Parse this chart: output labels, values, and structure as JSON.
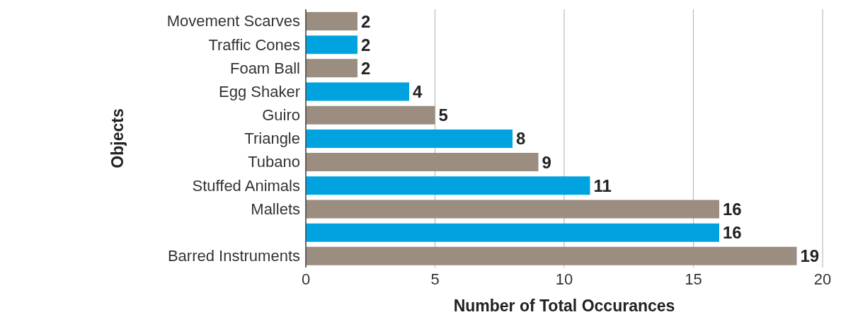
{
  "chart_data": {
    "type": "bar",
    "orientation": "horizontal",
    "xlabel": "Number of Total Occurances",
    "ylabel": "Objects",
    "categories": [
      "Movement Scarves",
      "Traffic Cones",
      "Foam Ball",
      "Egg Shaker",
      "Guiro",
      "Triangle",
      "Tubano",
      "Stuffed Animals",
      "Mallets",
      null,
      "Barred Instruments"
    ],
    "values": [
      2,
      2,
      2,
      4,
      5,
      8,
      9,
      11,
      16,
      16,
      19
    ],
    "colors": [
      "#9b8e80",
      "#00a3e0",
      "#9b8e80",
      "#00a3e0",
      "#9b8e80",
      "#00a3e0",
      "#9b8e80",
      "#00a3e0",
      "#9b8e80",
      "#00a3e0",
      "#9b8e80"
    ],
    "xlim": [
      0,
      20
    ],
    "xticks": [
      0,
      5,
      10,
      15,
      20
    ],
    "grid": "x",
    "data_labels": true
  }
}
